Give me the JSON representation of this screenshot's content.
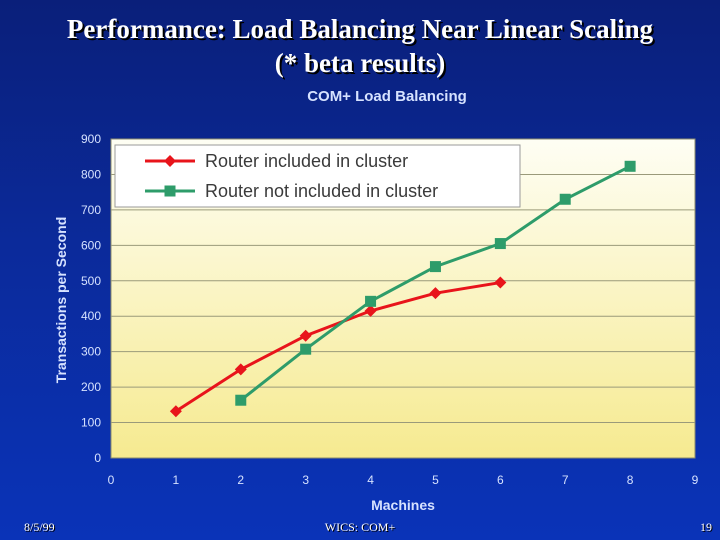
{
  "slide": {
    "title_line1": "Performance: Load Balancing Near Linear Scaling",
    "title_line2": "(* beta results)"
  },
  "footer": {
    "date": "8/5/99",
    "center": "WICS: COM+",
    "page": "19"
  },
  "chart_data": {
    "type": "line",
    "title": "COM+ Load Balancing",
    "xlabel": "Machines",
    "ylabel": "Transactions per Second",
    "xlim": [
      0,
      9
    ],
    "ylim": [
      0,
      900
    ],
    "x_ticks": [
      0,
      1,
      2,
      3,
      4,
      5,
      6,
      7,
      8,
      9
    ],
    "y_ticks": [
      0,
      100,
      200,
      300,
      400,
      500,
      600,
      700,
      800,
      900
    ],
    "grid": true,
    "legend_position": "top-left",
    "series": [
      {
        "name": "Router included in cluster",
        "color": "#e8141b",
        "marker": "diamond",
        "x": [
          1,
          2,
          3,
          4,
          5,
          6
        ],
        "y": [
          132,
          250,
          345,
          415,
          465,
          495
        ]
      },
      {
        "name": "Router not included in cluster",
        "color": "#2e9c6a",
        "marker": "square",
        "x": [
          2,
          3,
          4,
          5,
          6,
          7,
          8
        ],
        "y": [
          163,
          307,
          442,
          540,
          605,
          730,
          823
        ]
      }
    ]
  }
}
